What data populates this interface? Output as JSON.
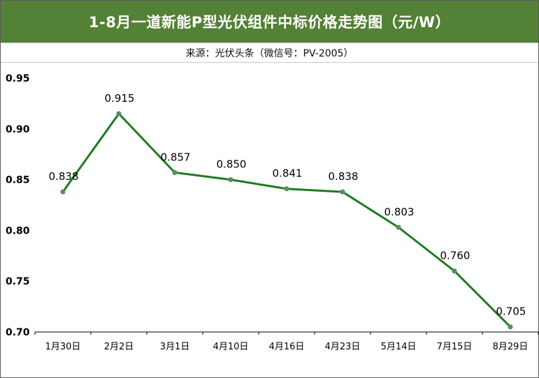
{
  "header": {
    "title": "1-8月一道新能P型光伏组件中标价格走势图（元/W）",
    "source": "来源：光伏头条（微信号：PV-2005）"
  },
  "colors": {
    "title_bg": "#538135",
    "line": "#1e7b1e",
    "marker": "#5b8a6b"
  },
  "chart_data": {
    "type": "line",
    "title": "1-8月一道新能P型光伏组件中标价格走势图（元/W）",
    "categories": [
      "1月30日",
      "2月2日",
      "3月1日",
      "4月10日",
      "4月16日",
      "4月23日",
      "5月14日",
      "7月15日",
      "8月29日"
    ],
    "series": [
      {
        "values": [
          0.838,
          0.915,
          0.857,
          0.85,
          0.841,
          0.838,
          0.803,
          0.76,
          0.705
        ]
      }
    ],
    "data_labels": [
      "0.838",
      "0.915",
      "0.857",
      "0.850",
      "0.841",
      "0.838",
      "0.803",
      "0.760",
      "0.705"
    ],
    "yticks": [
      "0.70",
      "0.75",
      "0.80",
      "0.85",
      "0.90",
      "0.95"
    ],
    "ylim": [
      0.7,
      0.95
    ],
    "xlabel": "",
    "ylabel": "",
    "grid": false,
    "legend": "none"
  }
}
